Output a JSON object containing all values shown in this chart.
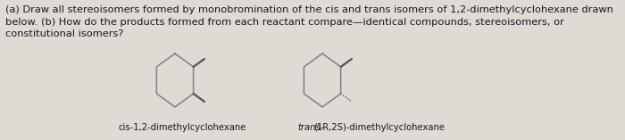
{
  "background_color": "#dedad4",
  "text_color": "#1a1a1a",
  "title_text": "(a) Draw all stereoisomers formed by monobromination of the cis and trans isomers of 1,2-dimethylcyclohexane drawn\nbelow. (b) How do the products formed from each reactant compare—identical compounds, stereoisomers, or\nconstitutional isomers?",
  "label1": "cis-1,2-dimethylcyclohexane",
  "label2_italic": "trans-",
  "label2_normal": "(1R,2S)-dimethylcyclohexane",
  "font_size_text": 8.2,
  "font_size_label": 7.2,
  "line_color": "#808080",
  "methyl_color": "#555555",
  "lw_ring": 1.1,
  "lw_methyl": 1.6
}
